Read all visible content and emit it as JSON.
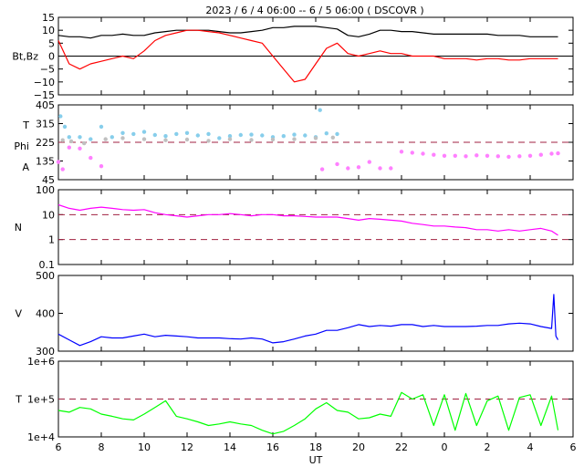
{
  "title": "2023  /  6 /  4   06:00  --  6 /  5   06:00 ( DSCOVR )",
  "x_axis": {
    "label": "UT",
    "ticks": [
      "6",
      "8",
      "10",
      "12",
      "14",
      "16",
      "18",
      "20",
      "22",
      "0",
      "2",
      "4",
      "6"
    ]
  },
  "chart_data": [
    {
      "type": "line",
      "ylabel": "Bt,Bz",
      "ylim": [
        -15,
        15
      ],
      "yticks": [
        "15",
        "10",
        "5",
        "0",
        "−5",
        "−10",
        "−15"
      ],
      "reference_lines": [
        0
      ],
      "x_hours": [
        6,
        6.5,
        7,
        7.5,
        8,
        8.5,
        9,
        9.5,
        10,
        10.5,
        11,
        11.5,
        12,
        12.5,
        13,
        13.5,
        14,
        14.5,
        15,
        15.5,
        16,
        16.5,
        17,
        17.5,
        18,
        18.5,
        19,
        19.5,
        20,
        20.5,
        21,
        21.5,
        22,
        22.5,
        23,
        23.5,
        24,
        24.5,
        25,
        25.5,
        26,
        26.5,
        27,
        27.5,
        28,
        28.5,
        29,
        29.3
      ],
      "series": [
        {
          "name": "Bt",
          "color": "#000000",
          "values": [
            8,
            7.5,
            7.5,
            7,
            8,
            8,
            8.5,
            8,
            8,
            9,
            9.5,
            10,
            10,
            10,
            10,
            9.5,
            9,
            9,
            9.5,
            10,
            11,
            11,
            11.5,
            11.5,
            11.5,
            11,
            10.5,
            8,
            7.5,
            8.5,
            10,
            10,
            9.5,
            9.5,
            9,
            8.5,
            8.5,
            8.5,
            8.5,
            8.5,
            8.5,
            8,
            8,
            8,
            7.5,
            7.5,
            7.5,
            7.5
          ]
        },
        {
          "name": "Bz",
          "color": "#ff0000",
          "values": [
            6,
            -3,
            -5,
            -3,
            -2,
            -1,
            0,
            -1,
            2,
            6,
            8,
            9,
            10,
            10,
            9.5,
            9,
            8,
            7,
            6,
            5,
            0,
            -5,
            -10,
            -9,
            -3,
            3,
            5,
            1,
            0,
            1,
            2,
            1,
            1,
            0,
            0,
            0,
            -1,
            -1,
            -1,
            -1.5,
            -1,
            -1,
            -1.5,
            -1.5,
            -1,
            -1,
            -1,
            -1
          ]
        }
      ]
    },
    {
      "type": "scatter",
      "ylabel_lines": [
        "T",
        "Phi",
        "A"
      ],
      "ylim": [
        45,
        405
      ],
      "yticks": [
        "405",
        "315",
        "225",
        "135",
        "45"
      ],
      "reference_lines": [
        225
      ],
      "series": [
        {
          "name": "Theta",
          "color": "#87ceeb",
          "x_hours": [
            6.1,
            6.3,
            6.5,
            7.0,
            7.5,
            8.0,
            8.5,
            9.0,
            9.5,
            10.0,
            10.5,
            11.0,
            11.5,
            12.0,
            12.5,
            13.0,
            13.5,
            14.0,
            14.5,
            15.0,
            15.5,
            16.0,
            16.5,
            17.0,
            17.5,
            18.0,
            18.2,
            18.5,
            19.0
          ],
          "values": [
            350,
            300,
            250,
            250,
            240,
            300,
            250,
            270,
            265,
            275,
            260,
            255,
            265,
            270,
            258,
            265,
            245,
            255,
            260,
            262,
            258,
            250,
            255,
            262,
            258,
            250,
            380,
            268,
            265
          ]
        },
        {
          "name": "Phi",
          "color": "#c0c0c0",
          "x_hours": [
            6.2,
            6.6,
            7.2,
            8.2,
            9.0,
            10.0,
            11.0,
            12.0,
            13.0,
            14.0,
            15.0,
            16.0,
            17.0,
            18.0,
            18.8
          ],
          "values": [
            235,
            230,
            220,
            240,
            245,
            240,
            235,
            238,
            232,
            240,
            236,
            238,
            240,
            245,
            248
          ]
        },
        {
          "name": "A",
          "color": "#ff80ff",
          "x_hours": [
            6.0,
            6.2,
            6.5,
            7.0,
            7.5,
            8.0,
            18.3,
            19.0,
            19.5,
            20.0,
            20.5,
            21.0,
            21.5,
            22.0,
            22.5,
            23.0,
            23.5,
            24.0,
            24.5,
            25.0,
            25.5,
            26.0,
            26.5,
            27.0,
            27.5,
            28.0,
            28.5,
            29.0,
            29.3
          ],
          "values": [
            130,
            95,
            200,
            195,
            150,
            110,
            95,
            120,
            100,
            105,
            130,
            100,
            100,
            180,
            175,
            170,
            165,
            160,
            160,
            158,
            162,
            160,
            158,
            155,
            158,
            160,
            165,
            170,
            172
          ]
        }
      ]
    },
    {
      "type": "line",
      "ylabel": "N",
      "scale": "log",
      "ylim": [
        0.1,
        100
      ],
      "yticks": [
        "100",
        "10",
        "1",
        "0.1"
      ],
      "reference_lines": [
        10,
        1
      ],
      "x_hours": [
        6,
        6.5,
        7,
        7.5,
        8,
        8.5,
        9,
        9.5,
        10,
        10.5,
        11,
        11.5,
        12,
        12.5,
        13,
        13.5,
        14,
        14.5,
        15,
        15.5,
        16,
        16.5,
        17,
        17.5,
        18,
        18.5,
        19,
        19.5,
        20,
        20.5,
        21,
        21.5,
        22,
        22.5,
        23,
        23.5,
        24,
        24.5,
        25,
        25.5,
        26,
        26.5,
        27,
        27.5,
        28,
        28.5,
        29,
        29.3
      ],
      "series": [
        {
          "name": "N",
          "color": "#ff00ff",
          "values": [
            25,
            18,
            15,
            18,
            20,
            18,
            16,
            15,
            16,
            12,
            10,
            9,
            8,
            9,
            10,
            10,
            11,
            10,
            9,
            10,
            10,
            9,
            9,
            8.5,
            8,
            8,
            8,
            7,
            6,
            7,
            6.5,
            6,
            5.5,
            4.5,
            4,
            3.5,
            3.5,
            3.2,
            3,
            2.5,
            2.5,
            2.2,
            2.5,
            2.2,
            2.5,
            2.8,
            2.2,
            1.5
          ]
        }
      ]
    },
    {
      "type": "line",
      "ylabel": "V",
      "ylim": [
        300,
        500
      ],
      "yticks": [
        "500",
        "400",
        "300"
      ],
      "reference_lines": [],
      "x_hours": [
        6,
        6.5,
        7,
        7.5,
        8,
        8.5,
        9,
        9.5,
        10,
        10.5,
        11,
        11.5,
        12,
        12.5,
        13,
        13.5,
        14,
        14.5,
        15,
        15.5,
        16,
        16.5,
        17,
        17.5,
        18,
        18.5,
        19,
        19.5,
        20,
        20.5,
        21,
        21.5,
        22,
        22.5,
        23,
        23.5,
        24,
        24.5,
        25,
        25.5,
        26,
        26.5,
        27,
        27.5,
        28,
        28.5,
        29,
        29.1,
        29.2,
        29.3
      ],
      "series": [
        {
          "name": "V",
          "color": "#0000ff",
          "values": [
            345,
            330,
            315,
            325,
            338,
            335,
            335,
            340,
            345,
            338,
            342,
            340,
            338,
            335,
            335,
            335,
            333,
            332,
            335,
            332,
            322,
            325,
            332,
            340,
            345,
            355,
            355,
            362,
            370,
            365,
            368,
            366,
            370,
            370,
            365,
            368,
            365,
            365,
            365,
            366,
            368,
            368,
            372,
            374,
            372,
            365,
            360,
            450,
            340,
            330
          ]
        }
      ]
    },
    {
      "type": "line",
      "ylabel": "T",
      "scale": "log",
      "ylim": [
        10000,
        1000000
      ],
      "yticks": [
        "1e+6",
        "1e+5",
        "1e+4"
      ],
      "reference_lines": [
        100000
      ],
      "x_hours": [
        6,
        6.5,
        7,
        7.5,
        8,
        8.5,
        9,
        9.5,
        10,
        10.5,
        11,
        11.5,
        12,
        12.5,
        13,
        13.5,
        14,
        14.5,
        15,
        15.5,
        16,
        16.5,
        17,
        17.5,
        18,
        18.5,
        19,
        19.5,
        20,
        20.5,
        21,
        21.5,
        22,
        22.5,
        23,
        23.5,
        24,
        24.5,
        25,
        25.5,
        26,
        26.5,
        27,
        27.5,
        28,
        28.5,
        29,
        29.3
      ],
      "series": [
        {
          "name": "T",
          "color": "#00ff00",
          "values": [
            50000,
            45000,
            60000,
            55000,
            40000,
            35000,
            30000,
            28000,
            40000,
            60000,
            90000,
            35000,
            30000,
            25000,
            20000,
            22000,
            25000,
            22000,
            20000,
            15000,
            12000,
            14000,
            20000,
            30000,
            55000,
            80000,
            50000,
            45000,
            30000,
            32000,
            40000,
            35000,
            150000,
            100000,
            130000,
            20000,
            130000,
            15000,
            140000,
            20000,
            90000,
            120000,
            15000,
            110000,
            130000,
            20000,
            120000,
            15000
          ]
        }
      ]
    }
  ]
}
